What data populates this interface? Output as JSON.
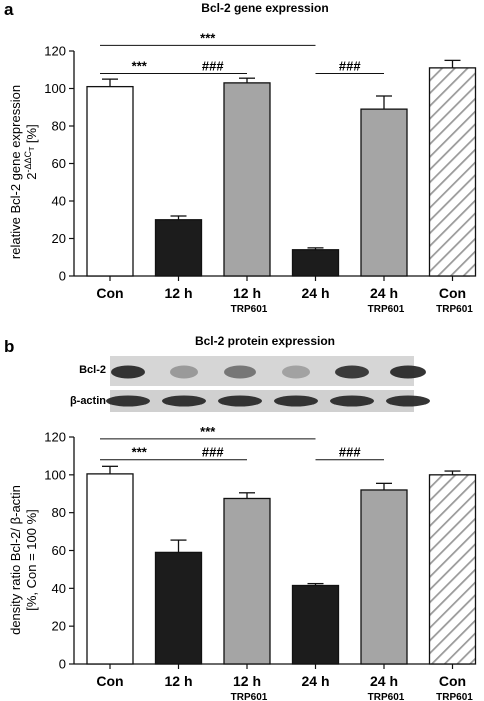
{
  "panels": {
    "a": {
      "letter": "a",
      "title": "Bcl-2 gene expression"
    },
    "b": {
      "letter": "b",
      "title": "Bcl-2 protein expression"
    }
  },
  "blot": {
    "row_labels": [
      "Bcl-2",
      "β-actin"
    ]
  },
  "colors": {
    "con": "#ffffff",
    "treated": "#1c1c1c",
    "trp601": "#a5a5a5",
    "hatch": "#9a9a9a",
    "axis": "#111111",
    "blot_bg": "#d6d6d6",
    "blot_band": "#2a2a2a"
  },
  "chart_data": [
    {
      "type": "bar",
      "title": "Bcl-2 gene expression",
      "ylabel": [
        "relative Bcl-2 gene expression",
        "2",
        "-ΔΔC",
        "T",
        " [%]"
      ],
      "ylim": [
        0,
        120
      ],
      "yticks": [
        0,
        20,
        40,
        60,
        80,
        100,
        120
      ],
      "categories": [
        "Con",
        "12 h",
        "12 h",
        "24 h",
        "24 h",
        "Con"
      ],
      "sublabels": [
        "",
        "",
        "TRP601",
        "",
        "TRP601",
        "TRP601"
      ],
      "fills": [
        "white",
        "black",
        "gray",
        "black",
        "gray",
        "hatch"
      ],
      "values": [
        101,
        30,
        103,
        14,
        89,
        111
      ],
      "errors": [
        4,
        2,
        2.5,
        1,
        7,
        4
      ],
      "significance": [
        {
          "from": 0,
          "to": 3,
          "label": "***",
          "level": 123
        },
        {
          "from": 0,
          "to": 1,
          "label": "***",
          "level": 108
        },
        {
          "from": 1,
          "to": 2,
          "label": "###",
          "level": 108
        },
        {
          "from": 3,
          "to": 4,
          "label": "###",
          "level": 108
        }
      ]
    },
    {
      "type": "bar",
      "ylabel": [
        "density ratio Bcl-2/ β-actin",
        "[%, Con = 100 %]"
      ],
      "ylim": [
        0,
        120
      ],
      "yticks": [
        0,
        20,
        40,
        60,
        80,
        100,
        120
      ],
      "categories": [
        "Con",
        "12 h",
        "12 h",
        "24 h",
        "24 h",
        "Con"
      ],
      "sublabels": [
        "",
        "",
        "TRP601",
        "",
        "TRP601",
        "TRP601"
      ],
      "fills": [
        "white",
        "black",
        "gray",
        "black",
        "gray",
        "hatch"
      ],
      "values": [
        100.5,
        59,
        87.5,
        41.5,
        92,
        100
      ],
      "errors": [
        4,
        6.5,
        3,
        1,
        3.5,
        2
      ],
      "significance": [
        {
          "from": 0,
          "to": 3,
          "label": "***",
          "level": 119
        },
        {
          "from": 0,
          "to": 1,
          "label": "***",
          "level": 108
        },
        {
          "from": 1,
          "to": 2,
          "label": "###",
          "level": 108
        },
        {
          "from": 3,
          "to": 4,
          "label": "###",
          "level": 108
        }
      ]
    }
  ]
}
